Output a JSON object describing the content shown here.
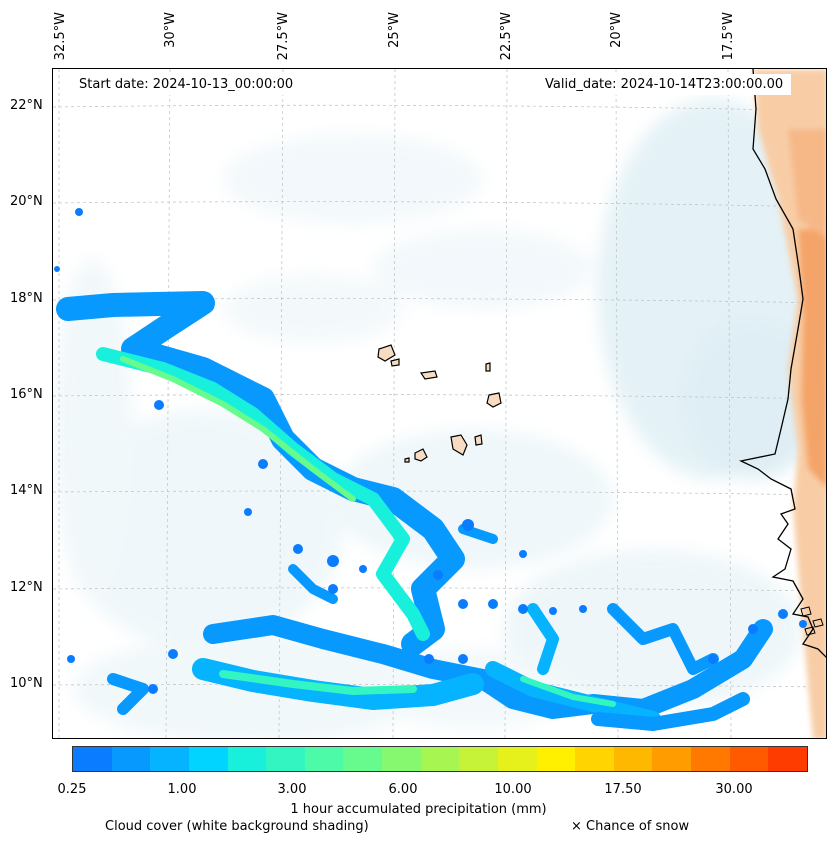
{
  "map": {
    "start_date": "Start date: 2024-10-13_00:00:00",
    "valid_date": "Valid_date: 2024-10-14T23:00:00.00",
    "lon_labels": [
      "32.5°W",
      "30°W",
      "27.5°W",
      "25°W",
      "22.5°W",
      "20°W",
      "17.5°W"
    ],
    "lat_labels": [
      "22°N",
      "20°N",
      "18°N",
      "16°N",
      "14°N",
      "12°N",
      "10°N"
    ]
  },
  "colorbar": {
    "title": "1 hour accumulated precipitation (mm)",
    "ticks": [
      "0.25",
      "1.00",
      "3.00",
      "6.00",
      "10.00",
      "17.50",
      "30.00"
    ],
    "colors": [
      "#0a7cff",
      "#0899ff",
      "#05b3ff",
      "#00d4ff",
      "#18f0dc",
      "#33f5c2",
      "#4dfaa8",
      "#66fb8c",
      "#86f870",
      "#a6f550",
      "#c6f238",
      "#e6f01a",
      "#fff000",
      "#ffd400",
      "#ffb800",
      "#ff9c00",
      "#ff7800",
      "#ff5a00",
      "#ff3c00"
    ]
  },
  "legend": {
    "cloud_cover": "Cloud cover (white background shading)",
    "snow": "× Chance of snow"
  }
}
